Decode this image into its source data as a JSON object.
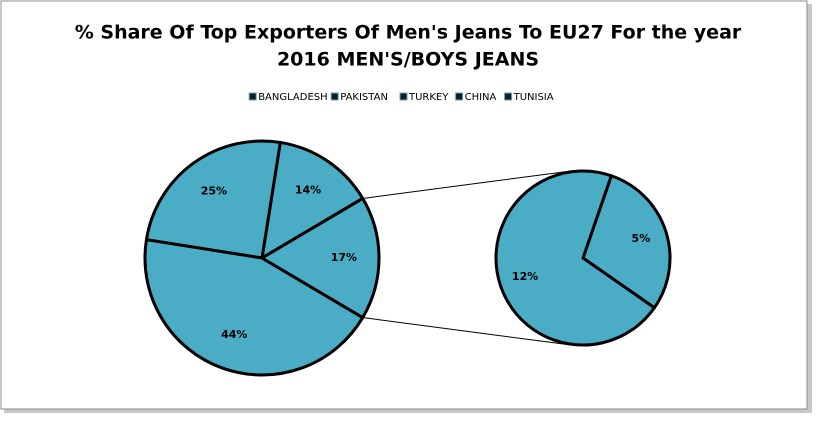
{
  "chart_data": {
    "type": "pie-of-pie",
    "title": "% Share Of Top Exporters Of Men's Jeans To EU27 For the year",
    "subtitle": "2016 MEN'S/BOYS JEANS",
    "categories": [
      "BANGLADESH",
      "PAKISTAN",
      "TURKEY",
      "CHINA",
      "TUNISIA"
    ],
    "values": [
      44,
      25,
      14,
      12,
      5
    ],
    "value_labels": [
      "44%",
      "25%",
      "14%",
      "12%",
      "5%"
    ],
    "secondary_count": 2,
    "other_value": 17,
    "other_label": "17%",
    "color": "#4bacc6",
    "legend": "top"
  }
}
